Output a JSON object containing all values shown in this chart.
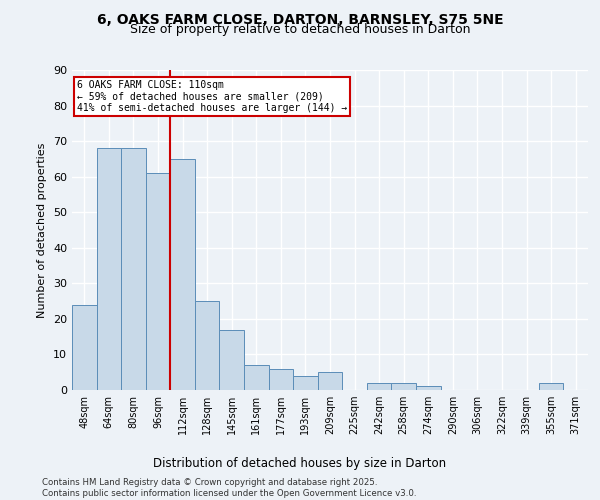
{
  "title_line1": "6, OAKS FARM CLOSE, DARTON, BARNSLEY, S75 5NE",
  "title_line2": "Size of property relative to detached houses in Darton",
  "xlabel": "Distribution of detached houses by size in Darton",
  "ylabel": "Number of detached properties",
  "categories": [
    "48sqm",
    "64sqm",
    "80sqm",
    "96sqm",
    "112sqm",
    "128sqm",
    "145sqm",
    "161sqm",
    "177sqm",
    "193sqm",
    "209sqm",
    "225sqm",
    "242sqm",
    "258sqm",
    "274sqm",
    "290sqm",
    "306sqm",
    "322sqm",
    "339sqm",
    "355sqm",
    "371sqm"
  ],
  "values": [
    24,
    68,
    68,
    61,
    65,
    25,
    17,
    7,
    6,
    4,
    5,
    0,
    2,
    2,
    1,
    0,
    0,
    0,
    0,
    2,
    0
  ],
  "bar_color": "#c8d9e8",
  "bar_edge_color": "#5b8db8",
  "vline_index": 4,
  "vline_color": "#cc0000",
  "annotation_text": "6 OAKS FARM CLOSE: 110sqm\n← 59% of detached houses are smaller (209)\n41% of semi-detached houses are larger (144) →",
  "annotation_box_color": "#cc0000",
  "ylim": [
    0,
    90
  ],
  "yticks": [
    0,
    10,
    20,
    30,
    40,
    50,
    60,
    70,
    80,
    90
  ],
  "background_color": "#edf2f7",
  "grid_color": "#ffffff",
  "footer": "Contains HM Land Registry data © Crown copyright and database right 2025.\nContains public sector information licensed under the Open Government Licence v3.0."
}
